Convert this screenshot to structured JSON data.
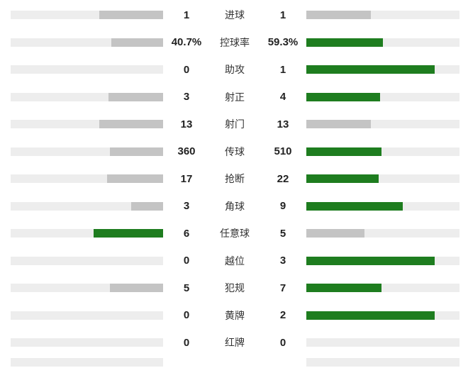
{
  "chart_data": {
    "type": "bar",
    "description": "Football match statistics comparison, home team (left, gray) vs away team (right, green highlights the higher value)",
    "max_fill_pct": 84,
    "colors": {
      "track": "#ededed",
      "neutral_fill": "#c4c4c4",
      "winner_fill": "#1e7d1f"
    },
    "rows": [
      {
        "label": "进球",
        "left_display": "1",
        "right_display": "1",
        "left_value": 1,
        "right_value": 1
      },
      {
        "label": "控球率",
        "left_display": "40.7%",
        "right_display": "59.3%",
        "left_value": 40.7,
        "right_value": 59.3
      },
      {
        "label": "助攻",
        "left_display": "0",
        "right_display": "1",
        "left_value": 0,
        "right_value": 1
      },
      {
        "label": "射正",
        "left_display": "3",
        "right_display": "4",
        "left_value": 3,
        "right_value": 4
      },
      {
        "label": "射门",
        "left_display": "13",
        "right_display": "13",
        "left_value": 13,
        "right_value": 13
      },
      {
        "label": "传球",
        "left_display": "360",
        "right_display": "510",
        "left_value": 360,
        "right_value": 510
      },
      {
        "label": "抢断",
        "left_display": "17",
        "right_display": "22",
        "left_value": 17,
        "right_value": 22
      },
      {
        "label": "角球",
        "left_display": "3",
        "right_display": "9",
        "left_value": 3,
        "right_value": 9
      },
      {
        "label": "任意球",
        "left_display": "6",
        "right_display": "5",
        "left_value": 6,
        "right_value": 5
      },
      {
        "label": "越位",
        "left_display": "0",
        "right_display": "3",
        "left_value": 0,
        "right_value": 3
      },
      {
        "label": "犯规",
        "left_display": "5",
        "right_display": "7",
        "left_value": 5,
        "right_value": 7
      },
      {
        "label": "黄牌",
        "left_display": "0",
        "right_display": "2",
        "left_value": 0,
        "right_value": 2
      },
      {
        "label": "红牌",
        "left_display": "0",
        "right_display": "0",
        "left_value": 0,
        "right_value": 0
      }
    ]
  }
}
